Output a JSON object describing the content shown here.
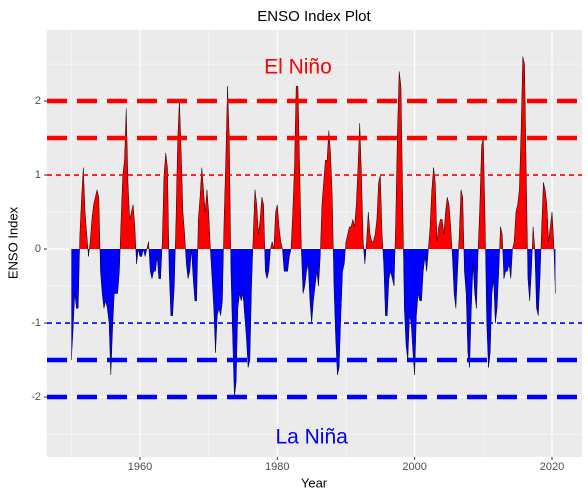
{
  "chart_data": {
    "type": "area",
    "title": "ENSO Index Plot",
    "x_label": "Year",
    "y_label": "ENSO Index",
    "xlim": [
      1946.46,
      2024.37
    ],
    "xticks": [
      1960,
      1980,
      2000,
      2020
    ],
    "ylim": [
      -2.81,
      2.96
    ],
    "yticks": [
      2,
      1,
      0,
      -1,
      -2
    ],
    "grid": true,
    "positive_color": "#ff0000",
    "negative_color": "#0000ff",
    "outline_color": "#000000",
    "x": [
      1950,
      1950.25,
      1950.5,
      1950.75,
      1951,
      1951.25,
      1951.5,
      1951.75,
      1952,
      1952.25,
      1952.5,
      1952.75,
      1953,
      1953.25,
      1953.5,
      1953.75,
      1954,
      1954.25,
      1954.5,
      1954.75,
      1955,
      1955.25,
      1955.5,
      1955.75,
      1956,
      1956.25,
      1956.5,
      1956.75,
      1957,
      1957.25,
      1957.5,
      1957.75,
      1958,
      1958.25,
      1958.5,
      1958.75,
      1959,
      1959.25,
      1959.5,
      1959.75,
      1960,
      1960.25,
      1960.5,
      1960.75,
      1961,
      1961.25,
      1961.5,
      1961.75,
      1962,
      1962.25,
      1962.5,
      1962.75,
      1963,
      1963.25,
      1963.5,
      1963.75,
      1964,
      1964.25,
      1964.5,
      1964.75,
      1965,
      1965.25,
      1965.5,
      1965.75,
      1966,
      1966.25,
      1966.5,
      1966.75,
      1967,
      1967.25,
      1967.5,
      1967.75,
      1968,
      1968.25,
      1968.5,
      1968.75,
      1969,
      1969.25,
      1969.5,
      1969.75,
      1970,
      1970.25,
      1970.5,
      1970.75,
      1971,
      1971.25,
      1971.5,
      1971.75,
      1972,
      1972.25,
      1972.5,
      1972.75,
      1973,
      1973.25,
      1973.5,
      1973.75,
      1974,
      1974.25,
      1974.5,
      1974.75,
      1975,
      1975.25,
      1975.5,
      1975.75,
      1976,
      1976.25,
      1976.5,
      1976.75,
      1977,
      1977.25,
      1977.5,
      1977.75,
      1978,
      1978.25,
      1978.5,
      1978.75,
      1979,
      1979.25,
      1979.5,
      1979.75,
      1980,
      1980.25,
      1980.5,
      1980.75,
      1981,
      1981.25,
      1981.5,
      1981.75,
      1982,
      1982.25,
      1982.5,
      1982.75,
      1983,
      1983.25,
      1983.5,
      1983.75,
      1984,
      1984.25,
      1984.5,
      1984.75,
      1985,
      1985.25,
      1985.5,
      1985.75,
      1986,
      1986.25,
      1986.5,
      1986.75,
      1987,
      1987.25,
      1987.5,
      1987.75,
      1988,
      1988.25,
      1988.5,
      1988.75,
      1989,
      1989.25,
      1989.5,
      1989.75,
      1990,
      1990.25,
      1990.5,
      1990.75,
      1991,
      1991.25,
      1991.5,
      1991.75,
      1992,
      1992.25,
      1992.5,
      1992.75,
      1993,
      1993.25,
      1993.5,
      1993.75,
      1994,
      1994.25,
      1994.5,
      1994.75,
      1995,
      1995.25,
      1995.5,
      1995.75,
      1996,
      1996.25,
      1996.5,
      1996.75,
      1997,
      1997.25,
      1997.5,
      1997.75,
      1998,
      1998.25,
      1998.5,
      1998.75,
      1999,
      1999.25,
      1999.5,
      1999.75,
      2000,
      2000.25,
      2000.5,
      2000.75,
      2001,
      2001.25,
      2001.5,
      2001.75,
      2002,
      2002.25,
      2002.5,
      2002.75,
      2003,
      2003.25,
      2003.5,
      2003.75,
      2004,
      2004.25,
      2004.5,
      2004.75,
      2005,
      2005.25,
      2005.5,
      2005.75,
      2006,
      2006.25,
      2006.5,
      2006.75,
      2007,
      2007.25,
      2007.5,
      2007.75,
      2008,
      2008.25,
      2008.5,
      2008.75,
      2009,
      2009.25,
      2009.5,
      2009.75,
      2010,
      2010.25,
      2010.5,
      2010.75,
      2011,
      2011.25,
      2011.5,
      2011.75,
      2012,
      2012.25,
      2012.5,
      2012.75,
      2013,
      2013.25,
      2013.5,
      2013.75,
      2014,
      2014.25,
      2014.5,
      2014.75,
      2015,
      2015.25,
      2015.5,
      2015.75,
      2016,
      2016.25,
      2016.5,
      2016.75,
      2017,
      2017.25,
      2017.5,
      2017.75,
      2018,
      2018.25,
      2018.5,
      2018.75,
      2019,
      2019.25,
      2019.5,
      2019.75,
      2020,
      2020.25,
      2020.5
    ],
    "values": [
      -1.5,
      -1.1,
      -0.6,
      -0.8,
      -0.8,
      0.2,
      0.7,
      1.1,
      0.5,
      0.2,
      -0.1,
      0.1,
      0.4,
      0.6,
      0.7,
      0.8,
      0.7,
      -0.3,
      -0.6,
      -0.8,
      -0.7,
      -0.8,
      -1.0,
      -1.7,
      -1.1,
      -0.6,
      -0.6,
      -0.6,
      -0.3,
      0.4,
      1.0,
      1.2,
      1.9,
      0.9,
      0.4,
      0.5,
      0.6,
      0.3,
      -0.2,
      0.0,
      -0.1,
      -0.1,
      0.0,
      -0.1,
      0.0,
      0.1,
      -0.3,
      -0.4,
      -0.3,
      -0.3,
      -0.1,
      -0.4,
      -0.4,
      0.1,
      1.0,
      1.3,
      1.1,
      -0.3,
      -0.9,
      -0.9,
      -0.5,
      0.4,
      1.5,
      2.0,
      1.3,
      0.5,
      0.2,
      -0.2,
      -0.4,
      -0.3,
      0.0,
      -0.4,
      -0.7,
      -0.7,
      0.4,
      0.7,
      1.1,
      0.8,
      0.5,
      0.8,
      0.5,
      0.0,
      -0.4,
      -0.8,
      -1.4,
      -0.9,
      -0.8,
      -0.9,
      -0.7,
      0.4,
      1.2,
      2.2,
      1.5,
      -0.3,
      -1.2,
      -2.0,
      -1.8,
      -0.8,
      -0.6,
      -0.7,
      -0.6,
      -0.9,
      -1.2,
      -1.6,
      -1.5,
      -0.5,
      0.2,
      0.8,
      0.6,
      0.2,
      0.4,
      0.7,
      0.6,
      -0.3,
      -0.4,
      -0.3,
      0.0,
      0.1,
      0.0,
      0.5,
      0.6,
      0.3,
      0.1,
      0.0,
      -0.3,
      -0.3,
      -0.3,
      -0.1,
      0.0,
      0.5,
      1.1,
      2.2,
      2.2,
      1.1,
      0.0,
      -0.6,
      -0.5,
      -0.3,
      -0.2,
      -0.7,
      -1.0,
      -0.7,
      -0.5,
      -0.3,
      -0.5,
      -0.1,
      0.6,
      0.9,
      1.2,
      1.2,
      1.6,
      1.3,
      0.7,
      -0.5,
      -1.2,
      -1.7,
      -1.6,
      -0.9,
      -0.3,
      -0.2,
      0.1,
      0.2,
      0.3,
      0.3,
      0.4,
      0.3,
      0.6,
      1.1,
      1.7,
      1.0,
      0.1,
      -0.2,
      0.1,
      0.5,
      0.2,
      0.1,
      0.1,
      0.2,
      0.4,
      0.9,
      1.0,
      0.2,
      -0.2,
      -0.9,
      -0.9,
      -0.4,
      -0.3,
      -0.4,
      -0.5,
      0.4,
      1.6,
      2.4,
      2.2,
      0.7,
      -0.8,
      -1.3,
      -1.5,
      -0.9,
      -1.0,
      -1.4,
      -1.7,
      -0.9,
      -0.6,
      -0.7,
      -0.7,
      -0.3,
      -0.1,
      -0.3,
      0.0,
      0.3,
      0.8,
      1.1,
      0.9,
      0.1,
      0.3,
      0.4,
      0.4,
      0.2,
      0.5,
      0.7,
      0.6,
      0.3,
      -0.1,
      -0.6,
      -0.8,
      -0.3,
      0.2,
      0.8,
      0.7,
      -0.3,
      -0.6,
      -1.4,
      -1.6,
      -0.8,
      -0.2,
      -0.6,
      -0.8,
      0.0,
      0.6,
      1.4,
      1.5,
      0.4,
      -1.0,
      -1.6,
      -1.4,
      -0.6,
      -0.4,
      -1.0,
      -0.8,
      -0.3,
      0.3,
      0.2,
      -0.4,
      -0.3,
      -0.3,
      -0.2,
      -0.4,
      0.0,
      0.1,
      0.5,
      0.6,
      0.8,
      1.6,
      2.6,
      2.5,
      1.0,
      -0.4,
      -0.7,
      -0.3,
      0.3,
      0.0,
      -0.8,
      -0.9,
      -0.4,
      0.3,
      0.9,
      0.8,
      0.6,
      0.1,
      0.3,
      0.5,
      0.1,
      -0.6
    ],
    "hlines": [
      {
        "value": 2,
        "color": "#ff0000",
        "thick": true
      },
      {
        "value": 1.5,
        "color": "#ff0000",
        "thick": true
      },
      {
        "value": 1,
        "color": "#ff0000",
        "thick": false
      },
      {
        "value": -1,
        "color": "#0000ff",
        "thick": false
      },
      {
        "value": -1.5,
        "color": "#0000ff",
        "thick": true
      },
      {
        "value": -2,
        "color": "#0000ff",
        "thick": true
      }
    ],
    "annotations": [
      {
        "text": "El Niño",
        "x": 1983,
        "y": 2.45,
        "color": "#ff0000"
      },
      {
        "text": "La Niña",
        "x": 1985,
        "y": -2.55,
        "color": "#0000ff"
      }
    ]
  }
}
